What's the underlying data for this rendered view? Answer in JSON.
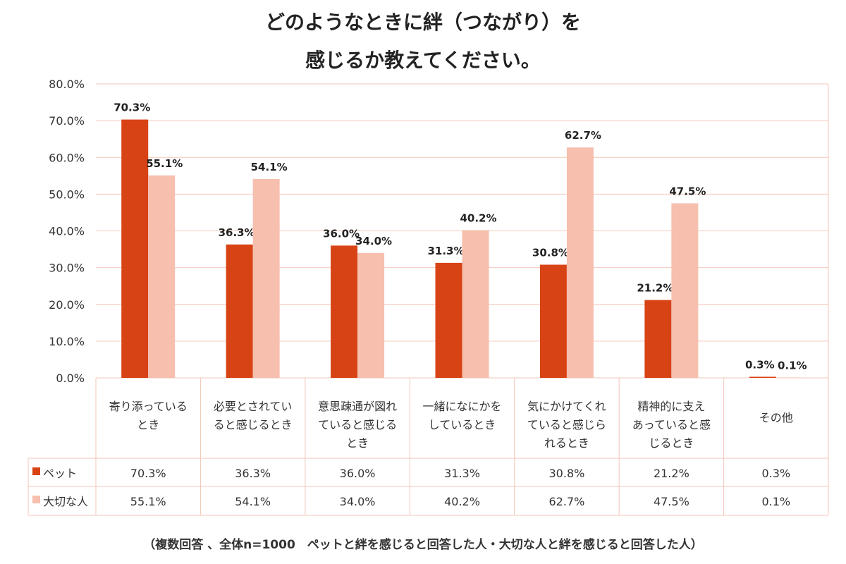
{
  "chart_data": {
    "type": "bar",
    "title_line1": "どのようなときに絆（つながり）を",
    "title_line2": "感じるか教えてください。",
    "categories": [
      [
        "寄り添っている",
        "とき"
      ],
      [
        "必要とされてい",
        "ると感じるとき"
      ],
      [
        "意思疎通が図れ",
        "ていると感じる",
        "とき"
      ],
      [
        "一緒になにかを",
        "しているとき"
      ],
      [
        "気にかけてくれ",
        "ていると感じら",
        "れるとき"
      ],
      [
        "精神的に支え",
        "あっていると感",
        "じるとき"
      ],
      [
        "その他"
      ]
    ],
    "series": [
      {
        "name": "ペット",
        "values": [
          70.3,
          36.3,
          36.0,
          31.3,
          30.8,
          21.2,
          0.3
        ],
        "color": "#d84315"
      },
      {
        "name": "大切な人",
        "values": [
          55.1,
          54.1,
          34.0,
          40.2,
          62.7,
          47.5,
          0.1
        ],
        "color": "#f6bfae"
      }
    ],
    "value_labels": [
      [
        "70.3%",
        "36.3%",
        "36.0%",
        "31.3%",
        "30.8%",
        "21.2%",
        "0.3%"
      ],
      [
        "55.1%",
        "54.1%",
        "34.0%",
        "40.2%",
        "62.7%",
        "47.5%",
        "0.1%"
      ]
    ],
    "yticks": [
      "0.0%",
      "10.0%",
      "20.0%",
      "30.0%",
      "40.0%",
      "50.0%",
      "60.0%",
      "70.0%",
      "80.0%"
    ],
    "ylim": [
      0,
      80
    ],
    "grid": true,
    "legend": "data-table",
    "footnote": "（複数回答 、全体n=1000　ペットと絆を感じると回答した人・大切な人と絆を感じると回答した人）",
    "grid_color": "#f3c7b8"
  }
}
